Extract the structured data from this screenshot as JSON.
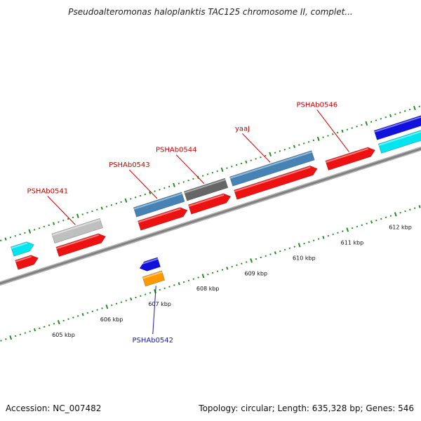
{
  "title": "Pseudoalteromonas haloplanktis TAC125 chromosome II, complet...",
  "accession": "Accession: NC_007482",
  "summary": "Topology: circular; Length: 635,328 bp; Genes: 546",
  "colors": {
    "cds": "#ee1111",
    "gene_rev": "#1111dd",
    "cyan": "#00e5ee",
    "steel": "#4682b4",
    "silver": "#bfbfbf",
    "dark_gray": "#666666",
    "orange": "#ff9900",
    "tick": "#2a8a2a",
    "backbone": "#808080",
    "label_fwd": "#cc0000",
    "label_rev": "#1a1aaa"
  },
  "ticks": [
    {
      "kbp": 605,
      "label": "605 kbp"
    },
    {
      "kbp": 606,
      "label": "606 kbp"
    },
    {
      "kbp": 607,
      "label": "607 kbp"
    },
    {
      "kbp": 608,
      "label": "608 kbp"
    },
    {
      "kbp": 609,
      "label": "609 kbp"
    },
    {
      "kbp": 610,
      "label": "610 kbp"
    },
    {
      "kbp": 611,
      "label": "611 kbp"
    },
    {
      "kbp": 612,
      "label": "612 kbp"
    }
  ],
  "features": [
    {
      "ring": "fwd_outer",
      "start": 604.55,
      "end": 605.0,
      "color": "cyan",
      "arrow": true
    },
    {
      "ring": "fwd_inner",
      "start": 604.55,
      "end": 605.0,
      "color": "cds",
      "arrow": true
    },
    {
      "ring": "fwd_outer",
      "start": 605.4,
      "end": 606.4,
      "color": "silver",
      "arrow": false,
      "label": "PSHAb0541"
    },
    {
      "ring": "fwd_inner",
      "start": 605.4,
      "end": 606.4,
      "color": "cds",
      "arrow": true
    },
    {
      "ring": "fwd_outer",
      "start": 607.1,
      "end": 608.1,
      "color": "steel",
      "arrow": false,
      "label": "PSHAb0543"
    },
    {
      "ring": "fwd_inner",
      "start": 607.1,
      "end": 608.1,
      "color": "cds",
      "arrow": true
    },
    {
      "ring": "fwd_outer",
      "start": 608.15,
      "end": 609.0,
      "color": "dark_gray",
      "arrow": false,
      "label": "PSHAb0544"
    },
    {
      "ring": "fwd_inner",
      "start": 608.15,
      "end": 609.0,
      "color": "cds",
      "arrow": true
    },
    {
      "ring": "fwd_outer",
      "start": 609.1,
      "end": 610.8,
      "color": "steel",
      "arrow": false,
      "label": "yaaJ"
    },
    {
      "ring": "fwd_inner",
      "start": 609.1,
      "end": 610.8,
      "color": "cds",
      "arrow": true
    },
    {
      "ring": "fwd_inner",
      "start": 611.0,
      "end": 612.0,
      "color": "cds",
      "arrow": true,
      "label": "PSHAb0546"
    },
    {
      "ring": "fwd_outer",
      "start": 612.1,
      "end": 613.2,
      "color": "gene_rev",
      "arrow": true
    },
    {
      "ring": "fwd_inner",
      "start": 612.1,
      "end": 613.2,
      "color": "cyan",
      "arrow": true
    },
    {
      "ring": "rev_outer",
      "start": 606.85,
      "end": 607.25,
      "color": "gene_rev",
      "arrow": true,
      "rev": true
    },
    {
      "ring": "rev_inner",
      "start": 606.85,
      "end": 607.25,
      "color": "orange",
      "arrow": false,
      "label": "PSHAb0542",
      "rev": true
    }
  ]
}
